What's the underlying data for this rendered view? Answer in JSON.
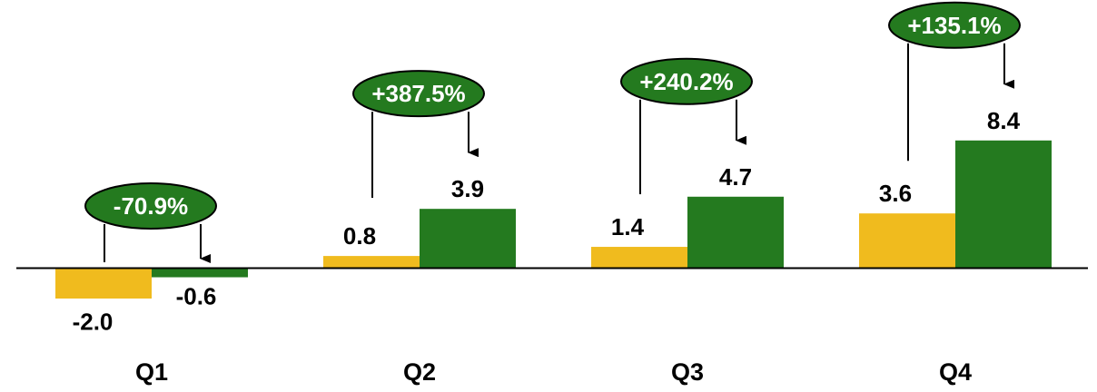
{
  "chart_data": {
    "type": "bar",
    "categories": [
      "Q1",
      "Q2",
      "Q3",
      "Q4"
    ],
    "series": [
      {
        "values": [
          -2.0,
          0.8,
          1.4,
          3.6
        ],
        "labels": [
          "-2.0",
          "0.8",
          "1.4",
          "3.6"
        ],
        "color": "#f0bb1e"
      },
      {
        "values": [
          -0.6,
          3.9,
          4.7,
          8.4
        ],
        "labels": [
          "-0.6",
          "3.9",
          "4.7",
          "8.4"
        ],
        "color": "#247a1f"
      }
    ],
    "annotations": [
      "-70.9%",
      "+387.5%",
      "+240.2%",
      "+135.1%"
    ],
    "annotation_color": "#247a1f",
    "title": "",
    "xlabel": "",
    "ylabel": ""
  }
}
